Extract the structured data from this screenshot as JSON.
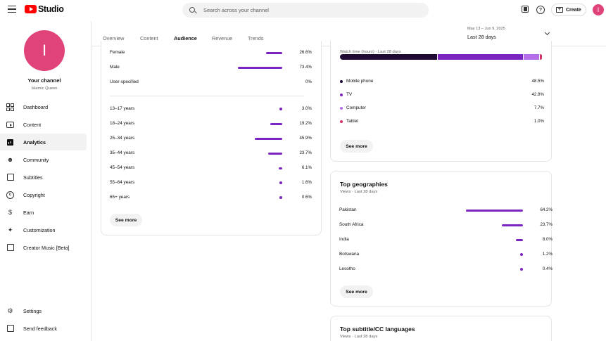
{
  "header": {
    "logo_text": "Studio",
    "search_placeholder": "Search across your channel",
    "create_label": "Create",
    "avatar_letter": "I",
    "help_glyph": "?"
  },
  "sidebar": {
    "avatar_letter": "I",
    "channel_title": "Your channel",
    "channel_name": "Islamic Queen",
    "items": [
      {
        "label": "Dashboard",
        "icon": "dashboard-icon"
      },
      {
        "label": "Content",
        "icon": "content-icon"
      },
      {
        "label": "Analytics",
        "icon": "analytics-icon",
        "active": true
      },
      {
        "label": "Community",
        "icon": "community-icon"
      },
      {
        "label": "Subtitles",
        "icon": "subtitles-icon"
      },
      {
        "label": "Copyright",
        "icon": "copyright-icon"
      },
      {
        "label": "Earn",
        "icon": "earn-icon"
      },
      {
        "label": "Customization",
        "icon": "customization-icon"
      },
      {
        "label": "Creator Music [Beta]",
        "icon": "creator-music-icon"
      }
    ],
    "bottom": [
      {
        "label": "Settings",
        "icon": "settings-icon"
      },
      {
        "label": "Send feedback",
        "icon": "feedback-icon"
      }
    ]
  },
  "tabs": [
    "Overview",
    "Content",
    "Audience",
    "Revenue",
    "Trends"
  ],
  "active_tab": "Audience",
  "date_range": {
    "sub": "May 13 – Jun 9, 2025",
    "main": "Last 28 days"
  },
  "accent_color": "#7b24c0",
  "demographics": {
    "gender": [
      {
        "label": "Female",
        "value": "26.6%",
        "pct": 26.6
      },
      {
        "label": "Male",
        "value": "73.4%",
        "pct": 73.4
      },
      {
        "label": "User-specified",
        "value": "0%",
        "pct": 0
      }
    ],
    "age": [
      {
        "label": "13–17 years",
        "value": "3.0%",
        "pct": 3.0
      },
      {
        "label": "18–24 years",
        "value": "19.2%",
        "pct": 19.2
      },
      {
        "label": "25–34 years",
        "value": "45.9%",
        "pct": 45.9
      },
      {
        "label": "35–44 years",
        "value": "23.7%",
        "pct": 23.7
      },
      {
        "label": "45–54 years",
        "value": "6.1%",
        "pct": 6.1
      },
      {
        "label": "55–64 years",
        "value": "1.6%",
        "pct": 1.6
      },
      {
        "label": "65+ years",
        "value": "0.6%",
        "pct": 0.6
      }
    ],
    "see_more": "See more"
  },
  "device_type": {
    "subtitle": "Watch time (hours) · Last 28 days",
    "items": [
      {
        "label": "Mobile phone",
        "value": "48.5%",
        "pct": 48.5,
        "color": "#1f0a33"
      },
      {
        "label": "TV",
        "value": "42.8%",
        "pct": 42.8,
        "color": "#7b24c0"
      },
      {
        "label": "Computer",
        "value": "7.7%",
        "pct": 7.7,
        "color": "#b36ee8"
      },
      {
        "label": "Tablet",
        "value": "1.0%",
        "pct": 1.0,
        "color": "#d6336c"
      }
    ],
    "see_more": "See more"
  },
  "geographies": {
    "title": "Top geographies",
    "subtitle": "Views · Last 28 days",
    "items": [
      {
        "label": "Pakistan",
        "value": "64.2%",
        "pct": 64.2
      },
      {
        "label": "South Africa",
        "value": "23.7%",
        "pct": 23.7
      },
      {
        "label": "India",
        "value": "8.0%",
        "pct": 8.0
      },
      {
        "label": "Botswana",
        "value": "1.2%",
        "pct": 1.2
      },
      {
        "label": "Lesotho",
        "value": "0.4%",
        "pct": 0.4
      }
    ],
    "see_more": "See more"
  },
  "subtitle_languages": {
    "title": "Top subtitle/CC languages",
    "subtitle": "Views · Last 28 days"
  }
}
